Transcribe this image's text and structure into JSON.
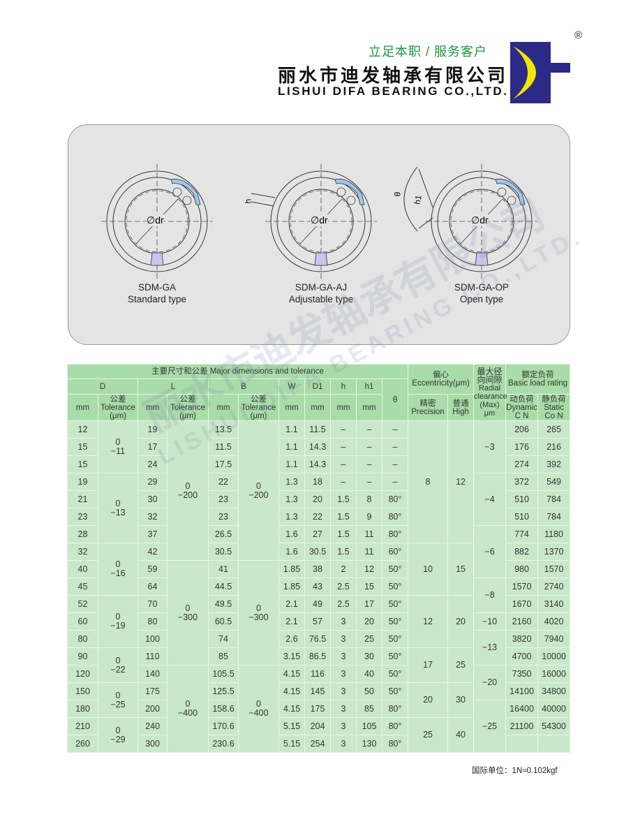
{
  "header": {
    "slogan": "立足本职 / 服务客户",
    "company_cn": "丽水市迪发轴承有限公司",
    "company_en": "LISHUI DIFA BEARING CO.,LTD.",
    "registered_mark": "®",
    "logo_text": "DF",
    "colors": {
      "logo_blue": "#2b2a86",
      "logo_yellow": "#f2e600",
      "slogan_green": "#1a9a3a"
    }
  },
  "diagrams": [
    {
      "model": "SDM-GA",
      "type": "Standard type",
      "dim_label": "∅dr"
    },
    {
      "model": "SDM-GA-AJ",
      "type": "Adjustable type",
      "dim_label": "∅dr",
      "h_label": "h"
    },
    {
      "model": "SDM-GA-OP",
      "type": "Open type",
      "dim_label": "∅dr",
      "h1_label": "h1",
      "theta_label": "θ"
    }
  ],
  "watermark": {
    "cn": "丽水市迪发轴承有限公司",
    "en": "LISHUI DIFA BEARING CO.,LTD."
  },
  "table": {
    "title_major": "主要尺寸和公差 Major dimensions and tolerance",
    "ecc_cn": "偏心",
    "ecc_en": "Eccentricity(μm)",
    "radial_cn": "最大径向间隙",
    "radial_en": "Radial clearance (Max) μm",
    "load_cn": "额定负荷",
    "load_en": "Basic load rating",
    "D": "D",
    "L": "L",
    "B": "B",
    "W": "W",
    "D1": "D1",
    "h": "h",
    "h1": "h1",
    "theta": "θ",
    "mm": "mm",
    "tol_cn": "公差",
    "tol_en": "Tolerance",
    "tol_unit": "(μm)",
    "precision_cn": "精密",
    "precision_en": "Precision",
    "high_cn": "普通",
    "high_en": "High",
    "dynamic_cn": "动负荷",
    "dynamic_en": "Dynamic",
    "dynamic_unit": "C N",
    "static_cn": "静负荷",
    "static_en": "Static",
    "static_unit": "Co N",
    "rows": [
      {
        "D": "12",
        "L": "19",
        "B": "13.5",
        "W": "1.1",
        "D1": "11.5",
        "h": "–",
        "h1": "–",
        "theta": "–",
        "C": "206",
        "Co": "265"
      },
      {
        "D": "15",
        "L": "17",
        "B": "11.5",
        "W": "1.1",
        "D1": "14.3",
        "h": "–",
        "h1": "–",
        "theta": "–",
        "C": "176",
        "Co": "216"
      },
      {
        "D": "15",
        "L": "24",
        "B": "17.5",
        "W": "1.1",
        "D1": "14.3",
        "h": "–",
        "h1": "–",
        "theta": "–",
        "C": "274",
        "Co": "392"
      },
      {
        "D": "19",
        "L": "29",
        "B": "22",
        "W": "1.3",
        "D1": "18",
        "h": "–",
        "h1": "–",
        "theta": "–",
        "C": "372",
        "Co": "549"
      },
      {
        "D": "21",
        "L": "30",
        "B": "23",
        "W": "1.3",
        "D1": "20",
        "h": "1.5",
        "h1": "8",
        "theta": "80°",
        "C": "510",
        "Co": "784"
      },
      {
        "D": "23",
        "L": "32",
        "B": "23",
        "W": "1.3",
        "D1": "22",
        "h": "1.5",
        "h1": "9",
        "theta": "80°",
        "C": "510",
        "Co": "784"
      },
      {
        "D": "28",
        "L": "37",
        "B": "26.5",
        "W": "1.6",
        "D1": "27",
        "h": "1.5",
        "h1": "11",
        "theta": "80°",
        "C": "774",
        "Co": "1180"
      },
      {
        "D": "32",
        "L": "42",
        "B": "30.5",
        "W": "1.6",
        "D1": "30.5",
        "h": "1.5",
        "h1": "11",
        "theta": "60°",
        "C": "882",
        "Co": "1370"
      },
      {
        "D": "40",
        "L": "59",
        "B": "41",
        "W": "1.85",
        "D1": "38",
        "h": "2",
        "h1": "12",
        "theta": "50°",
        "C": "980",
        "Co": "1570"
      },
      {
        "D": "45",
        "L": "64",
        "B": "44.5",
        "W": "1.85",
        "D1": "43",
        "h": "2.5",
        "h1": "15",
        "theta": "50°",
        "C": "1570",
        "Co": "2740"
      },
      {
        "D": "52",
        "L": "70",
        "B": "49.5",
        "W": "2.1",
        "D1": "49",
        "h": "2.5",
        "h1": "17",
        "theta": "50°",
        "C": "1670",
        "Co": "3140"
      },
      {
        "D": "60",
        "L": "80",
        "B": "60.5",
        "W": "2.1",
        "D1": "57",
        "h": "3",
        "h1": "20",
        "theta": "50°",
        "C": "2160",
        "Co": "4020"
      },
      {
        "D": "80",
        "L": "100",
        "B": "74",
        "W": "2.6",
        "D1": "76.5",
        "h": "3",
        "h1": "25",
        "theta": "50°",
        "C": "3820",
        "Co": "7940"
      },
      {
        "D": "90",
        "L": "110",
        "B": "85",
        "W": "3.15",
        "D1": "86.5",
        "h": "3",
        "h1": "30",
        "theta": "50°",
        "C": "4700",
        "Co": "10000"
      },
      {
        "D": "120",
        "L": "140",
        "B": "105.5",
        "W": "4.15",
        "D1": "116",
        "h": "3",
        "h1": "40",
        "theta": "50°",
        "C": "7350",
        "Co": "16000"
      },
      {
        "D": "150",
        "L": "175",
        "B": "125.5",
        "W": "4.15",
        "D1": "145",
        "h": "3",
        "h1": "50",
        "theta": "50°",
        "C": "14100",
        "Co": "34800"
      },
      {
        "D": "180",
        "L": "200",
        "B": "158.6",
        "W": "4.15",
        "D1": "175",
        "h": "3",
        "h1": "85",
        "theta": "80°",
        "C": "16400",
        "Co": "40000"
      },
      {
        "D": "210",
        "L": "240",
        "B": "170.6",
        "W": "5.15",
        "D1": "204",
        "h": "3",
        "h1": "105",
        "theta": "80°",
        "C": "21100",
        "Co": "54300"
      },
      {
        "D": "260",
        "L": "300",
        "B": "230.6",
        "W": "5.15",
        "D1": "254",
        "h": "3",
        "h1": "130",
        "theta": "80°",
        "C": "",
        "Co": ""
      }
    ],
    "D_tol": [
      {
        "rows": 3,
        "v": [
          "0",
          "−11"
        ]
      },
      {
        "rows": 4,
        "v": [
          "0",
          "−13"
        ]
      },
      {
        "rows": 3,
        "v": [
          "0",
          "−16"
        ]
      },
      {
        "rows": 3,
        "v": [
          "0",
          "−19"
        ]
      },
      {
        "rows": 2,
        "v": [
          "0",
          "−22"
        ]
      },
      {
        "rows": 2,
        "v": [
          "0",
          "−25"
        ]
      },
      {
        "rows": 2,
        "v": [
          "0",
          "−29"
        ]
      }
    ],
    "L_tol": [
      {
        "rows": 8,
        "v": [
          "0",
          "−200"
        ]
      },
      {
        "rows": 6,
        "v": [
          "0",
          "−300"
        ]
      },
      {
        "rows": 5,
        "v": [
          "0",
          "−400"
        ]
      }
    ],
    "B_tol": [
      {
        "rows": 8,
        "v": [
          "0",
          "−200"
        ]
      },
      {
        "rows": 6,
        "v": [
          "0",
          "−300"
        ]
      },
      {
        "rows": 5,
        "v": [
          "0",
          "−400"
        ]
      }
    ],
    "eccentricity": [
      {
        "rows": 7,
        "precision": "8",
        "high": "12"
      },
      {
        "rows": 3,
        "precision": "10",
        "high": "15"
      },
      {
        "rows": 3,
        "precision": "12",
        "high": "20"
      },
      {
        "rows": 2,
        "precision": "17",
        "high": "25"
      },
      {
        "rows": 2,
        "precision": "20",
        "high": "30"
      },
      {
        "rows": 2,
        "precision": "25",
        "high": "40"
      }
    ],
    "radial": [
      {
        "rows": 3,
        "v": "−3"
      },
      {
        "rows": 3,
        "v": "−4"
      },
      {
        "rows": 3,
        "v": "−6"
      },
      {
        "rows": 2,
        "v": "−8"
      },
      {
        "rows": 1,
        "v": "−10"
      },
      {
        "rows": 2,
        "v": "−13"
      },
      {
        "rows": 2,
        "v": "−20"
      },
      {
        "rows": 3,
        "v": "−25"
      }
    ]
  },
  "footnote": "国际单位：1N≈0.102kgf"
}
